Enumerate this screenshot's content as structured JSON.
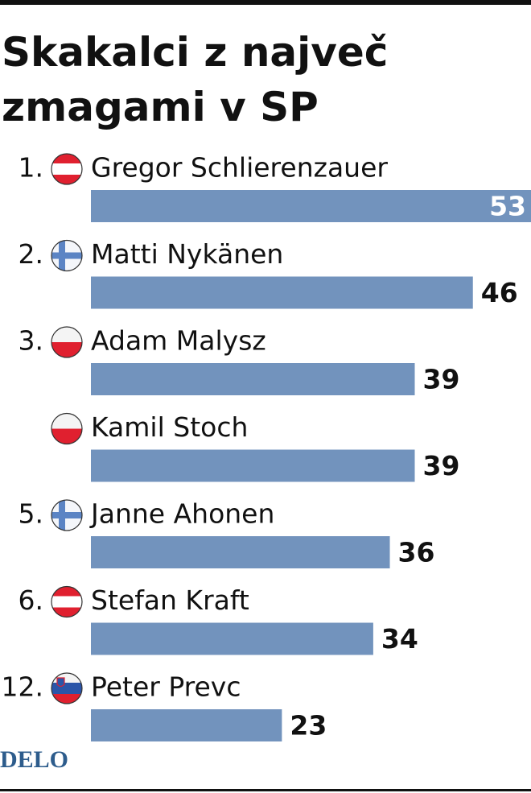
{
  "chart_data": {
    "type": "bar",
    "orientation": "horizontal",
    "title": [
      "Skakalci z največ",
      "zmagami v SP"
    ],
    "ranks": [
      "1.",
      "2.",
      "3.",
      null,
      "5.",
      "6.",
      "12."
    ],
    "categories": [
      "Gregor Schlierenzauer",
      "Matti Nykänen",
      "Adam Malysz",
      "Kamil Stoch",
      "Janne Ahonen",
      "Stefan Kraft",
      "Peter Prevc"
    ],
    "values": [
      53,
      46,
      39,
      39,
      36,
      34,
      23
    ],
    "color": "#7293bd",
    "source": "DELO"
  }
}
